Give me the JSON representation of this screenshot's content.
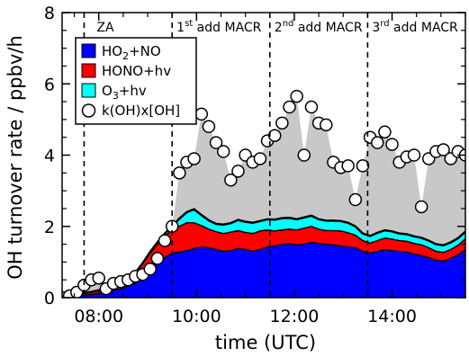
{
  "chart_data": {
    "type": "area",
    "xlabel": "time (UTC)",
    "ylabel": "OH turnover rate / ppbv/h",
    "xlim": [
      7.25,
      15.5
    ],
    "ylim": [
      0,
      8
    ],
    "x_ticks": [
      8,
      10,
      12,
      14
    ],
    "x_tick_labels": [
      "08:00",
      "10:00",
      "12:00",
      "14:00"
    ],
    "y_ticks": [
      0,
      2,
      4,
      6,
      8
    ],
    "y_tick_labels": [
      "0",
      "2",
      "4",
      "6",
      "8"
    ],
    "grid": false,
    "legend_position": "top-left",
    "annotations": [
      {
        "x": 7.7,
        "text": "ZA",
        "sup": ""
      },
      {
        "x": 9.5,
        "text": "1",
        "sup": "st",
        "suffix": " add MACR"
      },
      {
        "x": 11.5,
        "text": "2",
        "sup": "nd",
        "suffix": " add MACR"
      },
      {
        "x": 13.5,
        "text": "3",
        "sup": "rd",
        "suffix": " add MACR"
      }
    ],
    "x": [
      7.25,
      7.4,
      7.55,
      7.7,
      7.85,
      8.0,
      8.15,
      8.3,
      8.45,
      8.6,
      8.75,
      8.9,
      9.05,
      9.2,
      9.35,
      9.5,
      9.65,
      9.8,
      9.95,
      10.1,
      10.25,
      10.4,
      10.55,
      10.7,
      10.85,
      11.0,
      11.15,
      11.3,
      11.45,
      11.6,
      11.75,
      11.9,
      12.05,
      12.2,
      12.35,
      12.5,
      12.65,
      12.8,
      12.95,
      13.1,
      13.25,
      13.4,
      13.55,
      13.7,
      13.85,
      14.0,
      14.15,
      14.3,
      14.45,
      14.6,
      14.75,
      14.9,
      15.05,
      15.2,
      15.35,
      15.5
    ],
    "series": [
      {
        "name": "HO2+NO",
        "label_main": "HO",
        "label_sub": "2",
        "label_rest": "+NO",
        "color": "#0000ff",
        "values": [
          0.02,
          0.03,
          0.05,
          0.07,
          0.09,
          0.12,
          0.15,
          0.2,
          0.25,
          0.32,
          0.4,
          0.55,
          0.75,
          0.95,
          1.12,
          1.25,
          1.28,
          1.32,
          1.38,
          1.42,
          1.4,
          1.35,
          1.3,
          1.32,
          1.38,
          1.35,
          1.3,
          1.35,
          1.42,
          1.45,
          1.5,
          1.52,
          1.48,
          1.5,
          1.55,
          1.52,
          1.5,
          1.48,
          1.45,
          1.42,
          1.4,
          1.3,
          1.25,
          1.3,
          1.35,
          1.32,
          1.3,
          1.28,
          1.22,
          1.18,
          1.12,
          1.05,
          1.02,
          1.1,
          1.2,
          1.35
        ]
      },
      {
        "name": "HONO+hv",
        "label_main": "HONO+hv",
        "label_sub": "",
        "label_rest": "",
        "color": "#ff0000",
        "values": [
          0.03,
          0.04,
          0.05,
          0.06,
          0.07,
          0.09,
          0.1,
          0.12,
          0.15,
          0.2,
          0.3,
          0.4,
          0.5,
          0.55,
          0.6,
          0.65,
          0.72,
          0.78,
          0.72,
          0.6,
          0.52,
          0.5,
          0.5,
          0.52,
          0.5,
          0.48,
          0.5,
          0.52,
          0.48,
          0.42,
          0.4,
          0.4,
          0.42,
          0.45,
          0.45,
          0.4,
          0.38,
          0.4,
          0.42,
          0.4,
          0.35,
          0.3,
          0.28,
          0.3,
          0.32,
          0.32,
          0.3,
          0.3,
          0.3,
          0.3,
          0.28,
          0.25,
          0.25,
          0.25,
          0.27,
          0.3
        ]
      },
      {
        "name": "O3+hv",
        "label_main": "O",
        "label_sub": "3",
        "label_rest": "+hv",
        "color": "#00ffff",
        "values": [
          0.0,
          0.0,
          0.0,
          0.0,
          0.0,
          0.0,
          0.0,
          0.0,
          0.0,
          0.0,
          0.0,
          0.02,
          0.03,
          0.05,
          0.08,
          0.1,
          0.22,
          0.3,
          0.38,
          0.3,
          0.25,
          0.22,
          0.25,
          0.25,
          0.3,
          0.3,
          0.3,
          0.28,
          0.3,
          0.32,
          0.33,
          0.32,
          0.3,
          0.3,
          0.3,
          0.28,
          0.28,
          0.28,
          0.28,
          0.28,
          0.25,
          0.2,
          0.2,
          0.22,
          0.22,
          0.22,
          0.2,
          0.2,
          0.2,
          0.2,
          0.2,
          0.2,
          0.2,
          0.2,
          0.2,
          0.2
        ]
      }
    ],
    "koh_series": {
      "name": "k(OH)x[OH]",
      "x": [
        7.25,
        7.4,
        7.55,
        7.7,
        7.85,
        8.0,
        8.15,
        8.3,
        8.45,
        8.6,
        8.75,
        8.9,
        9.05,
        9.2,
        9.35,
        9.5,
        9.65,
        9.8,
        9.95,
        10.1,
        10.25,
        10.4,
        10.55,
        10.7,
        10.85,
        11.0,
        11.15,
        11.3,
        11.45,
        11.6,
        11.75,
        11.9,
        12.05,
        12.2,
        12.35,
        12.5,
        12.65,
        12.8,
        12.95,
        13.1,
        13.25,
        13.4,
        13.55,
        13.7,
        13.85,
        14.0,
        14.15,
        14.3,
        14.45,
        14.6,
        14.75,
        14.9,
        15.05,
        15.2,
        15.35,
        15.5
      ],
      "values": [
        0.0,
        0.05,
        0.15,
        0.35,
        0.5,
        0.55,
        0.25,
        0.4,
        0.45,
        0.5,
        0.6,
        0.65,
        0.8,
        1.1,
        1.6,
        2.0,
        3.5,
        3.8,
        3.9,
        5.15,
        4.8,
        4.35,
        4.1,
        3.3,
        3.55,
        4.0,
        3.8,
        3.9,
        4.4,
        4.55,
        4.9,
        5.35,
        5.65,
        4.0,
        5.35,
        4.9,
        4.85,
        3.8,
        3.65,
        3.7,
        2.75,
        3.7,
        4.5,
        4.35,
        4.65,
        4.3,
        3.8,
        3.95,
        4.0,
        2.55,
        3.9,
        4.1,
        4.15,
        3.9,
        4.1,
        4.0
      ]
    }
  }
}
